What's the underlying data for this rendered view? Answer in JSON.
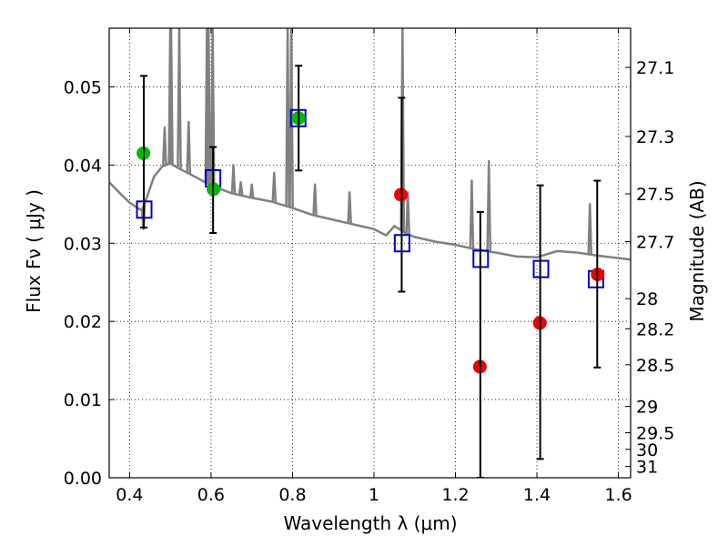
{
  "chart_data": {
    "type": "scatter",
    "xlabel": "Wavelength  λ (μm)",
    "ylabel_left": "Flux  Fν  ( μJy )",
    "ylabel_right": "Magnitude (AB)",
    "xlim": [
      0.35,
      1.63
    ],
    "ylim": [
      0.0,
      0.0575
    ],
    "grid": true,
    "x_ticks": [
      {
        "value": 0.4,
        "label": "0.4"
      },
      {
        "value": 0.6,
        "label": "0.6"
      },
      {
        "value": 0.8,
        "label": "0.8"
      },
      {
        "value": 1.0,
        "label": "1"
      },
      {
        "value": 1.2,
        "label": "1.2"
      },
      {
        "value": 1.4,
        "label": "1.4"
      },
      {
        "value": 1.6,
        "label": "1.6"
      }
    ],
    "y_ticks": [
      {
        "value": 0.0,
        "label": "0.00"
      },
      {
        "value": 0.01,
        "label": "0.01"
      },
      {
        "value": 0.02,
        "label": "0.02"
      },
      {
        "value": 0.03,
        "label": "0.03"
      },
      {
        "value": 0.04,
        "label": "0.04"
      },
      {
        "value": 0.05,
        "label": "0.05"
      }
    ],
    "right_ticks": [
      {
        "value": 27.1,
        "label": "27.1"
      },
      {
        "value": 27.3,
        "label": "27.3"
      },
      {
        "value": 27.5,
        "label": "27.5"
      },
      {
        "value": 27.7,
        "label": "27.7"
      },
      {
        "value": 28.0,
        "label": "28"
      },
      {
        "value": 28.2,
        "label": "28.2"
      },
      {
        "value": 28.5,
        "label": "28.5"
      },
      {
        "value": 29.0,
        "label": "29"
      },
      {
        "value": 29.5,
        "label": "29.5"
      },
      {
        "value": 30.0,
        "label": "30"
      },
      {
        "value": 31.0,
        "label": "31"
      }
    ],
    "series": [
      {
        "name": "model spectrum",
        "kind": "line",
        "color": "#808080",
        "continuum": [
          [
            0.35,
            0.0378
          ],
          [
            0.38,
            0.0362
          ],
          [
            0.4,
            0.0352
          ],
          [
            0.42,
            0.0345
          ],
          [
            0.43,
            0.0342
          ],
          [
            0.44,
            0.0355
          ],
          [
            0.46,
            0.0385
          ],
          [
            0.48,
            0.0398
          ],
          [
            0.5,
            0.0402
          ],
          [
            0.52,
            0.0396
          ],
          [
            0.55,
            0.0388
          ],
          [
            0.6,
            0.0374
          ],
          [
            0.65,
            0.0364
          ],
          [
            0.7,
            0.0358
          ],
          [
            0.75,
            0.0353
          ],
          [
            0.8,
            0.0345
          ],
          [
            0.85,
            0.0336
          ],
          [
            0.9,
            0.033
          ],
          [
            0.95,
            0.0324
          ],
          [
            1.0,
            0.0318
          ],
          [
            1.03,
            0.031
          ],
          [
            1.05,
            0.0322
          ],
          [
            1.08,
            0.0312
          ],
          [
            1.1,
            0.0308
          ],
          [
            1.15,
            0.0302
          ],
          [
            1.2,
            0.0298
          ],
          [
            1.25,
            0.0292
          ],
          [
            1.3,
            0.0288
          ],
          [
            1.35,
            0.0283
          ],
          [
            1.4,
            0.0282
          ],
          [
            1.45,
            0.029
          ],
          [
            1.5,
            0.0288
          ],
          [
            1.55,
            0.0284
          ],
          [
            1.6,
            0.0281
          ],
          [
            1.63,
            0.0279
          ]
        ],
        "emission_lines": [
          {
            "x": 0.434,
            "peak": 0.0318
          },
          {
            "x": 0.486,
            "peak": 0.0448
          },
          {
            "x": 0.5,
            "peak": 0.0575
          },
          {
            "x": 0.502,
            "peak": 0.0575
          },
          {
            "x": 0.522,
            "peak": 0.0575
          },
          {
            "x": 0.545,
            "peak": 0.0455
          },
          {
            "x": 0.59,
            "peak": 0.0575
          },
          {
            "x": 0.594,
            "peak": 0.0575
          },
          {
            "x": 0.604,
            "peak": 0.0575
          },
          {
            "x": 0.655,
            "peak": 0.04
          },
          {
            "x": 0.673,
            "peak": 0.0378
          },
          {
            "x": 0.7,
            "peak": 0.0375
          },
          {
            "x": 0.755,
            "peak": 0.039
          },
          {
            "x": 0.788,
            "peak": 0.0575
          },
          {
            "x": 0.797,
            "peak": 0.0575
          },
          {
            "x": 0.855,
            "peak": 0.0375
          },
          {
            "x": 0.94,
            "peak": 0.0365
          },
          {
            "x": 1.07,
            "peak": 0.0575
          },
          {
            "x": 1.083,
            "peak": 0.0365
          },
          {
            "x": 1.24,
            "peak": 0.038
          },
          {
            "x": 1.282,
            "peak": 0.0405
          },
          {
            "x": 1.53,
            "peak": 0.035
          }
        ]
      },
      {
        "name": "model photometry",
        "kind": "open-square",
        "color": "#0000cc",
        "points": [
          [
            0.436,
            0.0343
          ],
          [
            0.605,
            0.0383
          ],
          [
            0.814,
            0.046
          ],
          [
            1.069,
            0.03
          ],
          [
            1.262,
            0.028
          ],
          [
            1.41,
            0.0267
          ],
          [
            1.545,
            0.0254
          ]
        ]
      },
      {
        "name": "observed (green)",
        "kind": "filled-circle",
        "color": "#00bb00",
        "points": [
          [
            0.434,
            0.0415
          ],
          [
            0.606,
            0.0369
          ],
          [
            0.815,
            0.046
          ]
        ]
      },
      {
        "name": "observed (red)",
        "kind": "filled-circle",
        "color": "#ee0000",
        "points": [
          [
            1.066,
            0.0362
          ],
          [
            1.26,
            0.0142
          ],
          [
            1.407,
            0.0198
          ],
          [
            1.549,
            0.026
          ]
        ]
      },
      {
        "name": "error bars",
        "kind": "errorbar",
        "color": "#000000",
        "bars": [
          {
            "x": 0.435,
            "low": 0.032,
            "high": 0.0514
          },
          {
            "x": 0.605,
            "low": 0.0313,
            "high": 0.0423
          },
          {
            "x": 0.815,
            "low": 0.0393,
            "high": 0.0527
          },
          {
            "x": 1.068,
            "low": 0.0238,
            "high": 0.0486
          },
          {
            "x": 1.261,
            "low": 0.0,
            "high": 0.034
          },
          {
            "x": 1.408,
            "low": 0.0024,
            "high": 0.0374
          },
          {
            "x": 1.548,
            "low": 0.0141,
            "high": 0.038
          }
        ]
      }
    ]
  }
}
